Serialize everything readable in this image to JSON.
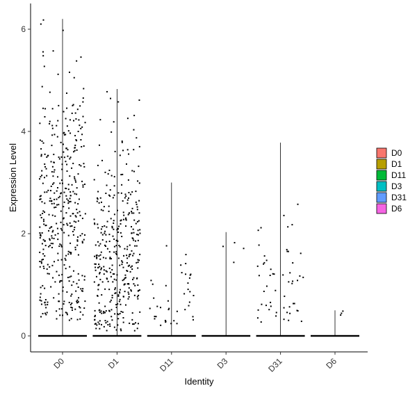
{
  "chart_data": {
    "type": "violin",
    "title": "",
    "xlabel": "Identity",
    "ylabel": "Expression Level",
    "categories": [
      "D0",
      "D1",
      "D11",
      "D3",
      "D31",
      "D6"
    ],
    "ylim": [
      -0.3,
      6.4
    ],
    "yticks": [
      0,
      2,
      4,
      6
    ],
    "grid": false,
    "series": [
      {
        "name": "D0",
        "color": "#F8766D",
        "max": 6.2,
        "zero_fraction": 0.45,
        "expressed_points": 420,
        "expressed_min": 0.3,
        "expressed_center": 2.4
      },
      {
        "name": "D1",
        "color": "#B79F00",
        "max": 4.83,
        "zero_fraction": 0.55,
        "expressed_points": 380,
        "expressed_min": 0.1,
        "expressed_center": 1.5
      },
      {
        "name": "D11",
        "color": "#00BA38",
        "max": 3.0,
        "zero_fraction": 0.92,
        "expressed_points": 40,
        "expressed_min": 0.2,
        "expressed_center": 0.7
      },
      {
        "name": "D3",
        "color": "#00BFC4",
        "max": 2.03,
        "zero_fraction": 0.99,
        "expressed_points": 4,
        "expressed_min": 0.7,
        "expressed_center": 1.8
      },
      {
        "name": "D31",
        "color": "#619CFF",
        "max": 3.78,
        "zero_fraction": 0.92,
        "expressed_points": 55,
        "expressed_min": 0.25,
        "expressed_center": 1.0
      },
      {
        "name": "D6",
        "color": "#F564E3",
        "max": 0.5,
        "zero_fraction": 0.995,
        "expressed_points": 3,
        "expressed_min": 0.35,
        "expressed_center": 0.45
      }
    ],
    "legend": {
      "position": "right",
      "entries": [
        "D0",
        "D1",
        "D11",
        "D3",
        "D31",
        "D6"
      ]
    }
  }
}
